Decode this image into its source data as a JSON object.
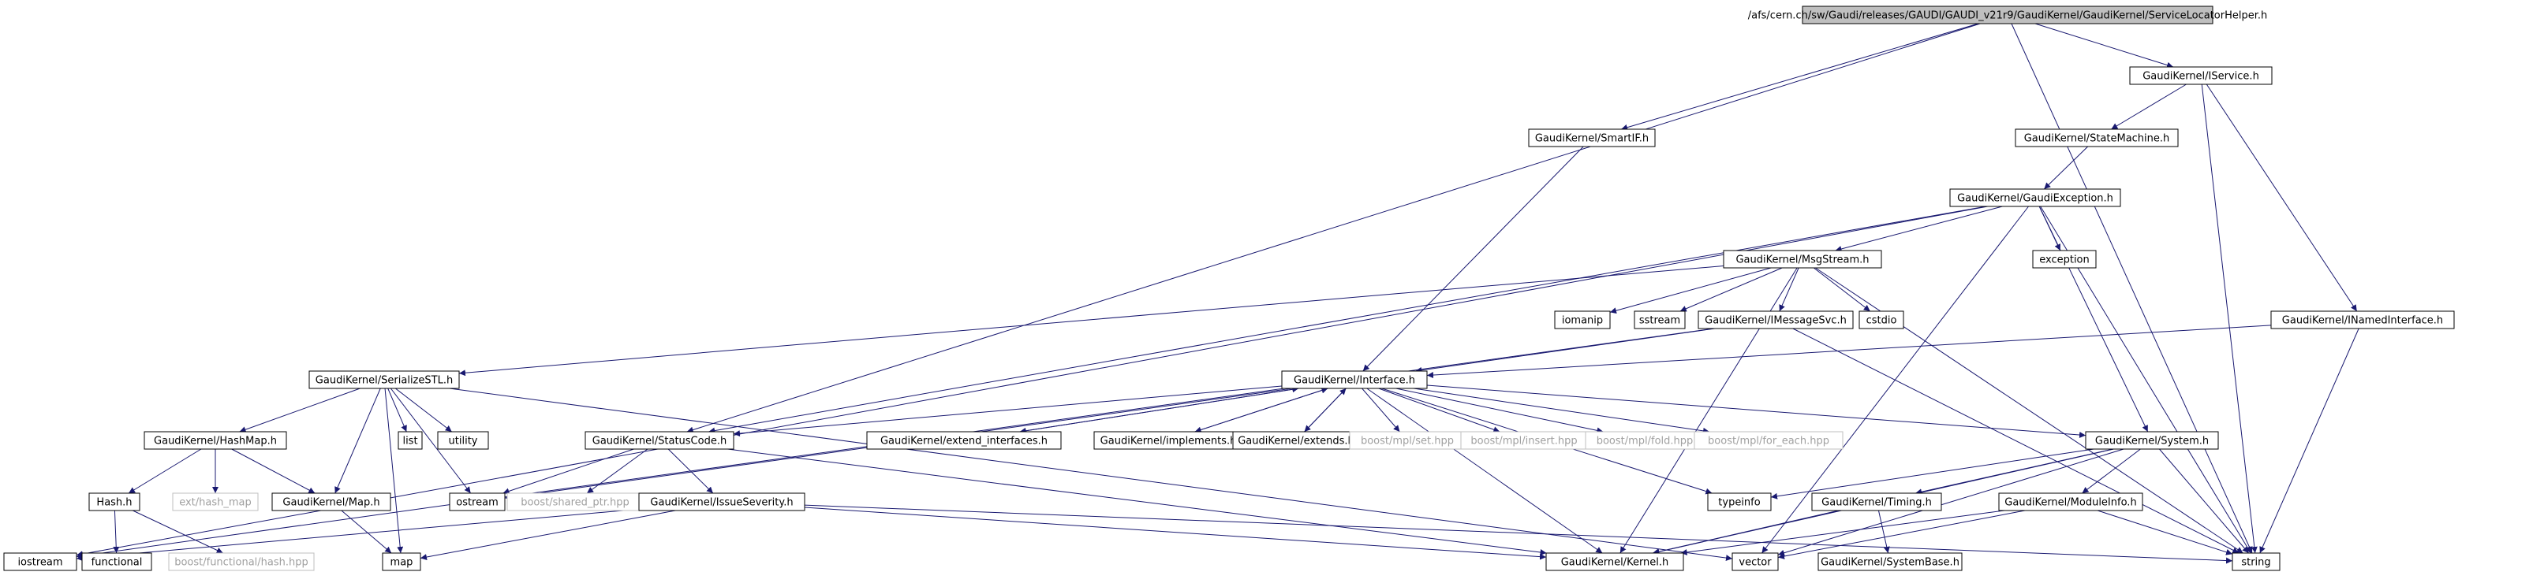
{
  "diagram": {
    "nodes": [
      {
        "id": "root",
        "label": "/afs/cern.ch/sw/Gaudi/releases/GAUDI/GAUDI_v21r9/GaudiKernel/GaudiKernel/ServiceLocatorHelper.h",
        "kind": "root"
      },
      {
        "id": "iservice",
        "label": "GaudiKernel/IService.h",
        "kind": "documented"
      },
      {
        "id": "smartif",
        "label": "GaudiKernel/SmartIF.h",
        "kind": "documented"
      },
      {
        "id": "statemachine",
        "label": "GaudiKernel/StateMachine.h",
        "kind": "documented"
      },
      {
        "id": "gaudiexception",
        "label": "GaudiKernel/GaudiException.h",
        "kind": "documented"
      },
      {
        "id": "exception",
        "label": "exception",
        "kind": "documented"
      },
      {
        "id": "msgstream",
        "label": "GaudiKernel/MsgStream.h",
        "kind": "documented"
      },
      {
        "id": "iomanip",
        "label": "iomanip",
        "kind": "documented"
      },
      {
        "id": "sstream",
        "label": "sstream",
        "kind": "documented"
      },
      {
        "id": "imessagesvc",
        "label": "GaudiKernel/IMessageSvc.h",
        "kind": "documented"
      },
      {
        "id": "cstdio",
        "label": "cstdio",
        "kind": "documented"
      },
      {
        "id": "inamedinterface",
        "label": "GaudiKernel/INamedInterface.h",
        "kind": "documented"
      },
      {
        "id": "serializestl",
        "label": "GaudiKernel/SerializeSTL.h",
        "kind": "documented"
      },
      {
        "id": "interface",
        "label": "GaudiKernel/Interface.h",
        "kind": "documented"
      },
      {
        "id": "list",
        "label": "list",
        "kind": "documented"
      },
      {
        "id": "utility",
        "label": "utility",
        "kind": "documented"
      },
      {
        "id": "hashmap",
        "label": "GaudiKernel/HashMap.h",
        "kind": "documented"
      },
      {
        "id": "statuscode",
        "label": "GaudiKernel/StatusCode.h",
        "kind": "documented"
      },
      {
        "id": "extend_interfaces",
        "label": "GaudiKernel/extend_interfaces.h",
        "kind": "documented"
      },
      {
        "id": "implements",
        "label": "GaudiKernel/implements.h",
        "kind": "documented"
      },
      {
        "id": "extends",
        "label": "GaudiKernel/extends.h",
        "kind": "documented"
      },
      {
        "id": "mpl_set",
        "label": "boost/mpl/set.hpp",
        "kind": "external"
      },
      {
        "id": "mpl_insert",
        "label": "boost/mpl/insert.hpp",
        "kind": "external"
      },
      {
        "id": "mpl_fold",
        "label": "boost/mpl/fold.hpp",
        "kind": "external"
      },
      {
        "id": "mpl_for_each",
        "label": "boost/mpl/for_each.hpp",
        "kind": "external"
      },
      {
        "id": "system",
        "label": "GaudiKernel/System.h",
        "kind": "documented"
      },
      {
        "id": "ext_hash_map",
        "label": "ext/hash_map",
        "kind": "external"
      },
      {
        "id": "map_h",
        "label": "GaudiKernel/Map.h",
        "kind": "documented"
      },
      {
        "id": "ostream",
        "label": "ostream",
        "kind": "documented"
      },
      {
        "id": "shared_ptr",
        "label": "boost/shared_ptr.hpp",
        "kind": "external"
      },
      {
        "id": "typeinfo",
        "label": "typeinfo",
        "kind": "documented"
      },
      {
        "id": "hash",
        "label": "Hash.h",
        "kind": "documented"
      },
      {
        "id": "issueseverity",
        "label": "GaudiKernel/IssueSeverity.h",
        "kind": "documented"
      },
      {
        "id": "timing",
        "label": "GaudiKernel/Timing.h",
        "kind": "documented"
      },
      {
        "id": "moduleinfo",
        "label": "GaudiKernel/ModuleInfo.h",
        "kind": "documented"
      },
      {
        "id": "iostream",
        "label": "iostream",
        "kind": "documented"
      },
      {
        "id": "functional",
        "label": "functional",
        "kind": "documented"
      },
      {
        "id": "boost_hash",
        "label": "boost/functional/hash.hpp",
        "kind": "external"
      },
      {
        "id": "map",
        "label": "map",
        "kind": "documented"
      },
      {
        "id": "kernel",
        "label": "GaudiKernel/Kernel.h",
        "kind": "documented"
      },
      {
        "id": "vector",
        "label": "vector",
        "kind": "documented"
      },
      {
        "id": "systembase",
        "label": "GaudiKernel/SystemBase.h",
        "kind": "documented"
      },
      {
        "id": "string",
        "label": "string",
        "kind": "documented"
      }
    ],
    "edges": [
      [
        "root",
        "iservice"
      ],
      [
        "root",
        "smartif"
      ],
      [
        "root",
        "statuscode"
      ],
      [
        "root",
        "string"
      ],
      [
        "iservice",
        "statemachine"
      ],
      [
        "iservice",
        "inamedinterface"
      ],
      [
        "iservice",
        "string"
      ],
      [
        "smartif",
        "interface"
      ],
      [
        "statemachine",
        "gaudiexception"
      ],
      [
        "gaudiexception",
        "msgstream"
      ],
      [
        "gaudiexception",
        "exception"
      ],
      [
        "gaudiexception",
        "iostream"
      ],
      [
        "gaudiexception",
        "statuscode"
      ],
      [
        "gaudiexception",
        "system"
      ],
      [
        "gaudiexception",
        "string"
      ],
      [
        "gaudiexception",
        "vector"
      ],
      [
        "msgstream",
        "iomanip"
      ],
      [
        "msgstream",
        "sstream"
      ],
      [
        "msgstream",
        "imessagesvc"
      ],
      [
        "msgstream",
        "cstdio"
      ],
      [
        "msgstream",
        "serializestl"
      ],
      [
        "msgstream",
        "kernel"
      ],
      [
        "msgstream",
        "string"
      ],
      [
        "imessagesvc",
        "interface"
      ],
      [
        "imessagesvc",
        "iostream"
      ],
      [
        "imessagesvc",
        "string"
      ],
      [
        "inamedinterface",
        "interface"
      ],
      [
        "inamedinterface",
        "string"
      ],
      [
        "serializestl",
        "hashmap"
      ],
      [
        "serializestl",
        "map_h"
      ],
      [
        "serializestl",
        "list"
      ],
      [
        "serializestl",
        "utility"
      ],
      [
        "serializestl",
        "ostream"
      ],
      [
        "serializestl",
        "map"
      ],
      [
        "serializestl",
        "vector"
      ],
      [
        "interface",
        "statuscode"
      ],
      [
        "interface",
        "extend_interfaces"
      ],
      [
        "interface",
        "implements"
      ],
      [
        "interface",
        "extends"
      ],
      [
        "interface",
        "mpl_set"
      ],
      [
        "interface",
        "mpl_insert"
      ],
      [
        "interface",
        "mpl_fold"
      ],
      [
        "interface",
        "mpl_for_each"
      ],
      [
        "interface",
        "system"
      ],
      [
        "interface",
        "ostream"
      ],
      [
        "interface",
        "kernel"
      ],
      [
        "interface",
        "typeinfo"
      ],
      [
        "extend_interfaces",
        "interface"
      ],
      [
        "implements",
        "interface"
      ],
      [
        "extends",
        "interface"
      ],
      [
        "hashmap",
        "hash"
      ],
      [
        "hashmap",
        "ext_hash_map"
      ],
      [
        "hashmap",
        "map_h"
      ],
      [
        "map_h",
        "map"
      ],
      [
        "statuscode",
        "ostream"
      ],
      [
        "statuscode",
        "shared_ptr"
      ],
      [
        "statuscode",
        "issueseverity"
      ],
      [
        "statuscode",
        "kernel"
      ],
      [
        "issueseverity",
        "map"
      ],
      [
        "issueseverity",
        "string"
      ],
      [
        "issueseverity",
        "iostream"
      ],
      [
        "issueseverity",
        "kernel"
      ],
      [
        "hash",
        "functional"
      ],
      [
        "hash",
        "boost_hash"
      ],
      [
        "system",
        "typeinfo"
      ],
      [
        "system",
        "timing"
      ],
      [
        "system",
        "moduleinfo"
      ],
      [
        "system",
        "kernel"
      ],
      [
        "system",
        "string"
      ],
      [
        "system",
        "vector"
      ],
      [
        "timing",
        "systembase"
      ],
      [
        "timing",
        "kernel"
      ],
      [
        "moduleinfo",
        "kernel"
      ],
      [
        "moduleinfo",
        "string"
      ],
      [
        "moduleinfo",
        "vector"
      ]
    ]
  },
  "colors": {
    "edge": "#191970",
    "box_border": "#000000",
    "external_border": "#bfbfbf",
    "external_text": "#a0a0a0",
    "root_fill": "#bfbfbf",
    "node_fill": "#ffffff",
    "text": "#000000"
  }
}
